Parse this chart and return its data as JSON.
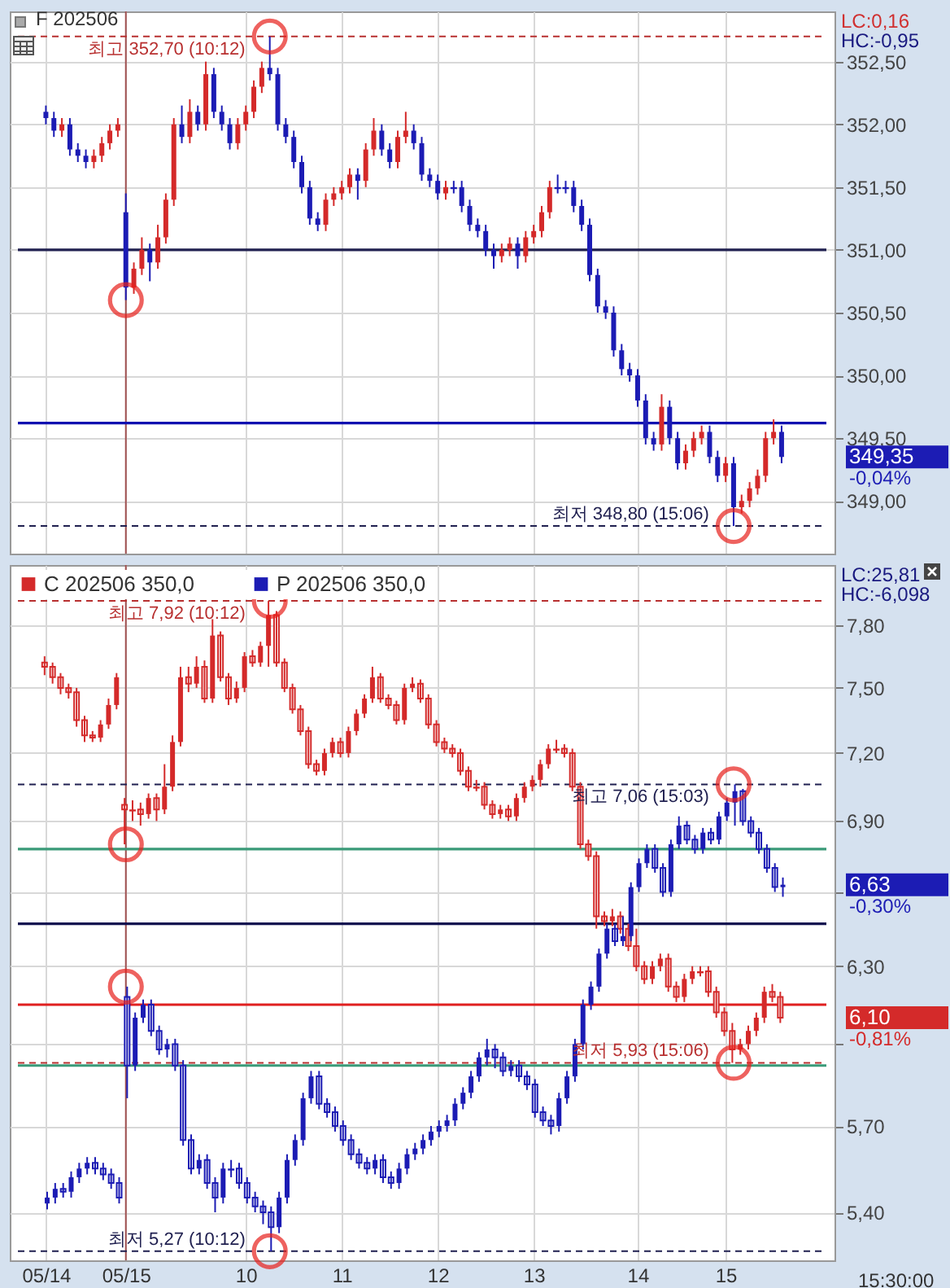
{
  "chart_data": [
    {
      "type": "candlestick",
      "title": "F 202506",
      "categories": [
        "05/14",
        null,
        null,
        null,
        null,
        null,
        null,
        null,
        null,
        null,
        "05/15",
        null,
        null,
        null,
        null,
        null,
        null,
        null,
        null,
        null,
        null,
        null,
        null,
        null,
        null,
        "10",
        null,
        null,
        null,
        null,
        null,
        null,
        null,
        null,
        null,
        null,
        null,
        "11",
        null,
        null,
        null,
        null,
        null,
        null,
        null,
        null,
        null,
        null,
        null,
        "12",
        null,
        null,
        null,
        null,
        null,
        null,
        null,
        null,
        null,
        null,
        null,
        "13",
        null,
        null,
        null,
        null,
        null,
        null,
        null,
        null,
        null,
        null,
        null,
        null,
        "14",
        null,
        null,
        null,
        null,
        null,
        null,
        null,
        null,
        null,
        null,
        "15",
        null,
        null,
        null,
        null,
        null,
        null,
        null
      ],
      "series": [
        {
          "colors": [
            "#1c1cb4",
            "#1c1cb4",
            "#d42a2a",
            "#1c1cb4",
            "#1c1cb4",
            "#1c1cb4",
            "#d42a2a",
            "#d42a2a",
            "#d42a2a",
            "#d42a2a",
            "#1c1cb4",
            "#d42a2a",
            "#d42a2a",
            "#1c1cb4",
            "#d42a2a",
            "#d42a2a",
            "#d42a2a",
            "#1c1cb4",
            "#d42a2a",
            "#1c1cb4",
            "#d42a2a",
            "#1c1cb4",
            "#1c1cb4",
            "#1c1cb4",
            "#d42a2a",
            "#d42a2a",
            "#d42a2a",
            "#d42a2a",
            "#1c1cb4",
            "#1c1cb4",
            "#1c1cb4",
            "#1c1cb4",
            "#1c1cb4",
            "#1c1cb4",
            "#1c1cb4",
            "#d42a2a",
            "#d42a2a",
            "#d42a2a",
            "#d42a2a",
            "#1c1cb4",
            "#d42a2a",
            "#d42a2a",
            "#1c1cb4",
            "#1c1cb4",
            "#d42a2a",
            "#d42a2a",
            "#1c1cb4",
            "#1c1cb4",
            "#1c1cb4",
            "#1c1cb4",
            "#d42a2a",
            "#1c1cb4",
            "#1c1cb4",
            "#1c1cb4",
            "#1c1cb4",
            "#1c1cb4",
            "#1c1cb4",
            "#d42a2a",
            "#d42a2a",
            "#1c1cb4",
            "#d42a2a",
            "#d42a2a",
            "#d42a2a",
            "#d42a2a",
            "#1c1cb4",
            "#1c1cb4",
            "#1c1cb4",
            "#1c1cb4",
            "#1c1cb4",
            "#1c1cb4",
            "#1c1cb4",
            "#1c1cb4",
            "#1c1cb4",
            "#1c1cb4",
            "#1c1cb4",
            "#1c1cb4",
            "#1c1cb4",
            "#d42a2a",
            "#1c1cb4",
            "#1c1cb4",
            "#d42a2a",
            "#d42a2a",
            "#d42a2a",
            "#1c1cb4",
            "#1c1cb4",
            "#d42a2a",
            "#1c1cb4",
            "#d42a2a",
            "#d42a2a",
            "#d42a2a",
            "#d42a2a",
            "#d42a2a",
            "#1c1cb4"
          ],
          "ohlc": [
            [
              352.1,
              352.15,
              352.0,
              352.05
            ],
            [
              352.05,
              352.1,
              351.9,
              351.95
            ],
            [
              351.95,
              352.05,
              351.9,
              352.0
            ],
            [
              352.0,
              352.05,
              351.75,
              351.8
            ],
            [
              351.8,
              351.85,
              351.7,
              351.75
            ],
            [
              351.75,
              351.8,
              351.65,
              351.7
            ],
            [
              351.7,
              351.8,
              351.65,
              351.75
            ],
            [
              351.75,
              351.9,
              351.7,
              351.85
            ],
            [
              351.85,
              352.0,
              351.8,
              351.95
            ],
            [
              351.95,
              352.05,
              351.9,
              352.0
            ],
            [
              351.3,
              351.45,
              350.6,
              350.7
            ],
            [
              350.7,
              350.9,
              350.65,
              350.85
            ],
            [
              350.85,
              351.1,
              350.8,
              351.0
            ],
            [
              351.0,
              351.05,
              350.75,
              350.9
            ],
            [
              350.9,
              351.2,
              350.85,
              351.1
            ],
            [
              351.1,
              351.45,
              351.05,
              351.4
            ],
            [
              351.4,
              352.05,
              351.35,
              352.0
            ],
            [
              352.0,
              352.15,
              351.85,
              351.9
            ],
            [
              351.9,
              352.2,
              351.85,
              352.1
            ],
            [
              352.1,
              352.15,
              351.95,
              352.0
            ],
            [
              352.0,
              352.5,
              351.95,
              352.4
            ],
            [
              352.4,
              352.45,
              352.05,
              352.1
            ],
            [
              352.1,
              352.15,
              351.95,
              352.0
            ],
            [
              352.0,
              352.05,
              351.8,
              351.85
            ],
            [
              351.85,
              352.05,
              351.8,
              352.0
            ],
            [
              352.0,
              352.15,
              351.95,
              352.1
            ],
            [
              352.1,
              352.35,
              352.05,
              352.3
            ],
            [
              352.3,
              352.5,
              352.25,
              352.45
            ],
            [
              352.45,
              352.7,
              352.35,
              352.4
            ],
            [
              352.4,
              352.45,
              351.95,
              352.0
            ],
            [
              352.0,
              352.05,
              351.85,
              351.9
            ],
            [
              351.9,
              351.95,
              351.65,
              351.7
            ],
            [
              351.7,
              351.75,
              351.45,
              351.5
            ],
            [
              351.5,
              351.55,
              351.2,
              351.25
            ],
            [
              351.25,
              351.3,
              351.15,
              351.2
            ],
            [
              351.2,
              351.45,
              351.15,
              351.4
            ],
            [
              351.4,
              351.5,
              351.35,
              351.45
            ],
            [
              351.45,
              351.55,
              351.4,
              351.5
            ],
            [
              351.5,
              351.65,
              351.45,
              351.6
            ],
            [
              351.6,
              351.65,
              351.4,
              351.55
            ],
            [
              351.55,
              351.85,
              351.5,
              351.8
            ],
            [
              351.8,
              352.05,
              351.75,
              351.95
            ],
            [
              351.95,
              352.0,
              351.75,
              351.8
            ],
            [
              351.8,
              351.85,
              351.65,
              351.7
            ],
            [
              351.7,
              351.95,
              351.65,
              351.9
            ],
            [
              351.9,
              352.1,
              351.85,
              351.95
            ],
            [
              351.95,
              352.0,
              351.8,
              351.85
            ],
            [
              351.85,
              351.9,
              351.55,
              351.6
            ],
            [
              351.6,
              351.65,
              351.5,
              351.55
            ],
            [
              351.55,
              351.6,
              351.4,
              351.45
            ],
            [
              351.45,
              351.55,
              351.4,
              351.5
            ],
            [
              351.5,
              351.55,
              351.45,
              351.5
            ],
            [
              351.5,
              351.55,
              351.3,
              351.35
            ],
            [
              351.35,
              351.4,
              351.15,
              351.2
            ],
            [
              351.2,
              351.25,
              351.1,
              351.15
            ],
            [
              351.15,
              351.2,
              350.95,
              351.0
            ],
            [
              351.0,
              351.05,
              350.85,
              350.95
            ],
            [
              350.95,
              351.05,
              350.9,
              351.0
            ],
            [
              351.0,
              351.1,
              350.95,
              351.05
            ],
            [
              351.05,
              351.1,
              350.85,
              350.95
            ],
            [
              350.95,
              351.15,
              350.9,
              351.1
            ],
            [
              351.1,
              351.2,
              351.05,
              351.15
            ],
            [
              351.15,
              351.35,
              351.1,
              351.3
            ],
            [
              351.3,
              351.55,
              351.25,
              351.5
            ],
            [
              351.5,
              351.6,
              351.45,
              351.5
            ],
            [
              351.5,
              351.55,
              351.45,
              351.5
            ],
            [
              351.5,
              351.55,
              351.3,
              351.35
            ],
            [
              351.35,
              351.4,
              351.15,
              351.2
            ],
            [
              351.2,
              351.25,
              350.75,
              350.8
            ],
            [
              350.8,
              350.85,
              350.5,
              350.55
            ],
            [
              350.55,
              350.6,
              350.45,
              350.5
            ],
            [
              350.5,
              350.55,
              350.15,
              350.2
            ],
            [
              350.2,
              350.25,
              350.0,
              350.05
            ],
            [
              350.05,
              350.1,
              349.95,
              350.0
            ],
            [
              350.0,
              350.05,
              349.75,
              349.8
            ],
            [
              349.8,
              349.85,
              349.45,
              349.5
            ],
            [
              349.5,
              349.55,
              349.4,
              349.45
            ],
            [
              349.45,
              349.85,
              349.4,
              349.75
            ],
            [
              349.75,
              349.8,
              349.45,
              349.5
            ],
            [
              349.5,
              349.55,
              349.25,
              349.3
            ],
            [
              349.3,
              349.45,
              349.25,
              349.4
            ],
            [
              349.4,
              349.55,
              349.35,
              349.5
            ],
            [
              349.5,
              349.6,
              349.45,
              349.55
            ],
            [
              349.55,
              349.6,
              349.3,
              349.35
            ],
            [
              349.35,
              349.4,
              349.15,
              349.2
            ],
            [
              349.2,
              349.35,
              349.15,
              349.3
            ],
            [
              349.3,
              349.35,
              348.8,
              348.95
            ],
            [
              348.95,
              349.05,
              348.9,
              349.0
            ],
            [
              349.0,
              349.15,
              348.95,
              349.1
            ],
            [
              349.1,
              349.25,
              349.05,
              349.2
            ],
            [
              349.2,
              349.55,
              349.15,
              349.5
            ],
            [
              349.5,
              349.65,
              349.45,
              349.55
            ],
            [
              349.55,
              349.6,
              349.3,
              349.35
            ]
          ]
        }
      ],
      "ylim": [
        348.58,
        352.9
      ],
      "yticks": [
        {
          "value": 349,
          "label": "349,00"
        },
        {
          "value": 349.5,
          "label": "349,50"
        },
        {
          "value": 350,
          "label": "350,00"
        },
        {
          "value": 350.5,
          "label": "350,50"
        },
        {
          "value": 351,
          "label": "351,00"
        },
        {
          "value": 351.5,
          "label": "351,50"
        },
        {
          "value": 352,
          "label": "352,00"
        },
        {
          "value": 352.5,
          "label": "352,50"
        }
      ],
      "grid": true,
      "tick_labels": "y",
      "ref_lines": [
        {
          "axis": "x",
          "value": "05/15",
          "color": "#a05050"
        },
        {
          "axis": "y",
          "value": 352.7,
          "label": "최고 352,70 (10:12)",
          "color": "#b83030",
          "line_style": "dashed"
        },
        {
          "axis": "y",
          "value": 351.0,
          "color": "#202050"
        },
        {
          "axis": "y",
          "value": 349.62,
          "color": "#1010b0"
        },
        {
          "axis": "y",
          "value": 348.8,
          "label": "최저 348,80 (15:06)",
          "color": "#202050",
          "line_style": "dashed"
        }
      ],
      "annotations": [
        "LC:0,16",
        "HC:-0,95",
        "349,35",
        "-0,04%"
      ]
    },
    {
      "type": "candlestick",
      "categories": [
        "05/14",
        null,
        null,
        null,
        null,
        null,
        null,
        null,
        null,
        null,
        "05/15",
        null,
        null,
        null,
        null,
        null,
        null,
        null,
        null,
        null,
        null,
        null,
        null,
        null,
        null,
        "10",
        null,
        null,
        null,
        null,
        null,
        null,
        null,
        null,
        null,
        null,
        null,
        "11",
        null,
        null,
        null,
        null,
        null,
        null,
        null,
        null,
        null,
        null,
        null,
        "12",
        null,
        null,
        null,
        null,
        null,
        null,
        null,
        null,
        null,
        null,
        null,
        "13",
        null,
        null,
        null,
        null,
        null,
        null,
        null,
        null,
        null,
        null,
        null,
        null,
        "14",
        null,
        null,
        null,
        null,
        null,
        null,
        null,
        null,
        null,
        null,
        "15",
        null,
        null,
        null,
        null,
        null,
        null,
        null
      ],
      "series": [
        {
          "name": "C 202506 350,0",
          "color": "#d42a2a",
          "ohlc": [
            [
              7.62,
              7.65,
              7.56,
              7.6
            ],
            [
              7.6,
              7.62,
              7.52,
              7.55
            ],
            [
              7.55,
              7.57,
              7.47,
              7.5
            ],
            [
              7.5,
              7.52,
              7.45,
              7.48
            ],
            [
              7.48,
              7.5,
              7.32,
              7.35
            ],
            [
              7.35,
              7.37,
              7.25,
              7.28
            ],
            [
              7.28,
              7.3,
              7.25,
              7.27
            ],
            [
              7.27,
              7.35,
              7.25,
              7.33
            ],
            [
              7.33,
              7.45,
              7.31,
              7.42
            ],
            [
              7.42,
              7.57,
              7.4,
              7.55
            ],
            [
              6.97,
              7.0,
              6.8,
              6.95
            ],
            [
              6.95,
              6.99,
              6.9,
              6.95
            ],
            [
              6.95,
              6.98,
              6.88,
              6.93
            ],
            [
              6.93,
              7.02,
              6.91,
              7.0
            ],
            [
              7.0,
              7.02,
              6.9,
              6.95
            ],
            [
              6.95,
              7.15,
              6.93,
              7.05
            ],
            [
              7.05,
              7.28,
              7.03,
              7.25
            ],
            [
              7.25,
              7.6,
              7.23,
              7.55
            ],
            [
              7.55,
              7.6,
              7.48,
              7.52
            ],
            [
              7.52,
              7.65,
              7.5,
              7.6
            ],
            [
              7.6,
              7.63,
              7.43,
              7.45
            ],
            [
              7.45,
              7.83,
              7.43,
              7.75
            ],
            [
              7.75,
              7.77,
              7.53,
              7.55
            ],
            [
              7.55,
              7.57,
              7.42,
              7.45
            ],
            [
              7.45,
              7.53,
              7.43,
              7.5
            ],
            [
              7.5,
              7.67,
              7.48,
              7.65
            ],
            [
              7.65,
              7.68,
              7.6,
              7.62
            ],
            [
              7.62,
              7.72,
              7.6,
              7.7
            ],
            [
              7.7,
              7.92,
              7.6,
              7.85
            ],
            [
              7.85,
              7.87,
              7.6,
              7.62
            ],
            [
              7.62,
              7.64,
              7.48,
              7.5
            ],
            [
              7.5,
              7.52,
              7.38,
              7.4
            ],
            [
              7.4,
              7.42,
              7.28,
              7.3
            ],
            [
              7.3,
              7.32,
              7.13,
              7.15
            ],
            [
              7.15,
              7.17,
              7.1,
              7.12
            ],
            [
              7.12,
              7.22,
              7.1,
              7.2
            ],
            [
              7.2,
              7.27,
              7.18,
              7.25
            ],
            [
              7.25,
              7.27,
              7.18,
              7.2
            ],
            [
              7.2,
              7.32,
              7.18,
              7.3
            ],
            [
              7.3,
              7.4,
              7.28,
              7.38
            ],
            [
              7.38,
              7.47,
              7.36,
              7.45
            ],
            [
              7.45,
              7.6,
              7.43,
              7.55
            ],
            [
              7.55,
              7.57,
              7.43,
              7.45
            ],
            [
              7.45,
              7.47,
              7.4,
              7.42
            ],
            [
              7.42,
              7.44,
              7.33,
              7.35
            ],
            [
              7.35,
              7.52,
              7.33,
              7.5
            ],
            [
              7.5,
              7.55,
              7.48,
              7.52
            ],
            [
              7.52,
              7.54,
              7.43,
              7.45
            ],
            [
              7.45,
              7.47,
              7.31,
              7.33
            ],
            [
              7.33,
              7.35,
              7.23,
              7.25
            ],
            [
              7.25,
              7.27,
              7.2,
              7.22
            ],
            [
              7.22,
              7.24,
              7.18,
              7.2
            ],
            [
              7.2,
              7.22,
              7.1,
              7.12
            ],
            [
              7.12,
              7.14,
              7.03,
              7.05
            ],
            [
              7.05,
              7.08,
              7.03,
              7.05
            ],
            [
              7.05,
              7.07,
              6.95,
              6.97
            ],
            [
              6.97,
              6.99,
              6.91,
              6.93
            ],
            [
              6.93,
              6.97,
              6.91,
              6.95
            ],
            [
              6.95,
              6.97,
              6.9,
              6.92
            ],
            [
              6.92,
              7.02,
              6.9,
              7.0
            ],
            [
              7.0,
              7.07,
              6.98,
              7.05
            ],
            [
              7.05,
              7.1,
              7.03,
              7.08
            ],
            [
              7.08,
              7.17,
              7.05,
              7.15
            ],
            [
              7.15,
              7.24,
              7.13,
              7.22
            ],
            [
              7.22,
              7.26,
              7.2,
              7.22
            ],
            [
              7.22,
              7.24,
              7.18,
              7.2
            ],
            [
              7.2,
              7.22,
              7.03,
              7.05
            ],
            [
              7.05,
              7.07,
              6.78,
              6.8
            ],
            [
              6.8,
              6.82,
              6.73,
              6.75
            ],
            [
              6.75,
              6.77,
              6.45,
              6.5
            ],
            [
              6.5,
              6.52,
              6.46,
              6.48
            ],
            [
              6.48,
              6.53,
              6.46,
              6.5
            ],
            [
              6.5,
              6.52,
              6.43,
              6.45
            ],
            [
              6.45,
              6.47,
              6.36,
              6.38
            ],
            [
              6.38,
              6.45,
              6.28,
              6.3
            ],
            [
              6.3,
              6.32,
              6.23,
              6.25
            ],
            [
              6.25,
              6.32,
              6.23,
              6.3
            ],
            [
              6.3,
              6.35,
              6.28,
              6.33
            ],
            [
              6.33,
              6.35,
              6.2,
              6.22
            ],
            [
              6.22,
              6.24,
              6.16,
              6.18
            ],
            [
              6.18,
              6.27,
              6.16,
              6.25
            ],
            [
              6.25,
              6.3,
              6.23,
              6.28
            ],
            [
              6.28,
              6.3,
              6.26,
              6.28
            ],
            [
              6.28,
              6.3,
              6.18,
              6.2
            ],
            [
              6.2,
              6.22,
              6.1,
              6.12
            ],
            [
              6.12,
              6.14,
              6.03,
              6.05
            ],
            [
              6.05,
              6.08,
              5.93,
              5.98
            ],
            [
              5.98,
              6.02,
              5.96,
              6.0
            ],
            [
              6.0,
              6.07,
              5.98,
              6.05
            ],
            [
              6.05,
              6.12,
              6.03,
              6.1
            ],
            [
              6.1,
              6.22,
              6.08,
              6.2
            ],
            [
              6.2,
              6.23,
              6.16,
              6.18
            ],
            [
              6.18,
              6.2,
              6.08,
              6.1
            ]
          ]
        },
        {
          "name": "P 202506 350,0",
          "color": "#1c1cb4",
          "ohlc": [
            [
              5.43,
              5.47,
              5.41,
              5.45
            ],
            [
              5.45,
              5.5,
              5.43,
              5.48
            ],
            [
              5.48,
              5.5,
              5.45,
              5.47
            ],
            [
              5.47,
              5.54,
              5.45,
              5.52
            ],
            [
              5.52,
              5.57,
              5.5,
              5.55
            ],
            [
              5.55,
              5.59,
              5.53,
              5.57
            ],
            [
              5.57,
              5.59,
              5.53,
              5.55
            ],
            [
              5.55,
              5.57,
              5.51,
              5.53
            ],
            [
              5.53,
              5.55,
              5.48,
              5.5
            ],
            [
              5.5,
              5.52,
              5.43,
              5.45
            ],
            [
              6.18,
              6.22,
              5.8,
              5.92
            ],
            [
              5.92,
              6.12,
              5.9,
              6.1
            ],
            [
              6.1,
              6.17,
              6.08,
              6.15
            ],
            [
              6.15,
              6.17,
              6.03,
              6.05
            ],
            [
              6.05,
              6.07,
              5.96,
              5.98
            ],
            [
              5.98,
              6.02,
              5.95,
              6.0
            ],
            [
              6.0,
              6.02,
              5.9,
              5.92
            ],
            [
              5.92,
              5.94,
              5.63,
              5.65
            ],
            [
              5.65,
              5.67,
              5.53,
              5.55
            ],
            [
              5.55,
              5.6,
              5.53,
              5.58
            ],
            [
              5.58,
              5.6,
              5.48,
              5.5
            ],
            [
              5.5,
              5.52,
              5.4,
              5.45
            ],
            [
              5.45,
              5.57,
              5.43,
              5.55
            ],
            [
              5.55,
              5.58,
              5.52,
              5.55
            ],
            [
              5.55,
              5.57,
              5.48,
              5.5
            ],
            [
              5.5,
              5.52,
              5.43,
              5.45
            ],
            [
              5.45,
              5.47,
              5.4,
              5.42
            ],
            [
              5.42,
              5.44,
              5.36,
              5.4
            ],
            [
              5.4,
              5.42,
              5.27,
              5.35
            ],
            [
              5.35,
              5.47,
              5.33,
              5.45
            ],
            [
              5.45,
              5.6,
              5.43,
              5.58
            ],
            [
              5.58,
              5.67,
              5.56,
              5.65
            ],
            [
              5.65,
              5.82,
              5.63,
              5.8
            ],
            [
              5.8,
              5.9,
              5.78,
              5.88
            ],
            [
              5.88,
              5.9,
              5.76,
              5.78
            ],
            [
              5.78,
              5.8,
              5.73,
              5.75
            ],
            [
              5.75,
              5.77,
              5.68,
              5.7
            ],
            [
              5.7,
              5.72,
              5.63,
              5.65
            ],
            [
              5.65,
              5.67,
              5.58,
              5.6
            ],
            [
              5.6,
              5.62,
              5.55,
              5.57
            ],
            [
              5.57,
              5.59,
              5.53,
              5.55
            ],
            [
              5.55,
              5.6,
              5.53,
              5.58
            ],
            [
              5.58,
              5.6,
              5.5,
              5.52
            ],
            [
              5.52,
              5.54,
              5.48,
              5.5
            ],
            [
              5.5,
              5.57,
              5.48,
              5.55
            ],
            [
              5.55,
              5.62,
              5.53,
              5.6
            ],
            [
              5.6,
              5.64,
              5.58,
              5.62
            ],
            [
              5.62,
              5.67,
              5.6,
              5.65
            ],
            [
              5.65,
              5.7,
              5.63,
              5.68
            ],
            [
              5.68,
              5.72,
              5.66,
              5.7
            ],
            [
              5.7,
              5.74,
              5.68,
              5.72
            ],
            [
              5.72,
              5.8,
              5.7,
              5.78
            ],
            [
              5.78,
              5.84,
              5.76,
              5.82
            ],
            [
              5.82,
              5.9,
              5.8,
              5.88
            ],
            [
              5.88,
              5.97,
              5.86,
              5.95
            ],
            [
              5.95,
              6.02,
              5.92,
              5.98
            ],
            [
              5.98,
              6.0,
              5.91,
              5.95
            ],
            [
              5.95,
              5.97,
              5.88,
              5.9
            ],
            [
              5.9,
              5.94,
              5.88,
              5.92
            ],
            [
              5.92,
              5.94,
              5.86,
              5.88
            ],
            [
              5.88,
              5.9,
              5.83,
              5.85
            ],
            [
              5.85,
              5.87,
              5.73,
              5.75
            ],
            [
              5.75,
              5.77,
              5.7,
              5.72
            ],
            [
              5.72,
              5.74,
              5.67,
              5.7
            ],
            [
              5.7,
              5.82,
              5.68,
              5.8
            ],
            [
              5.8,
              5.9,
              5.78,
              5.88
            ],
            [
              5.88,
              6.02,
              5.86,
              6.0
            ],
            [
              6.0,
              6.17,
              5.98,
              6.15
            ],
            [
              6.15,
              6.24,
              6.13,
              6.22
            ],
            [
              6.22,
              6.37,
              6.2,
              6.35
            ],
            [
              6.35,
              6.47,
              6.33,
              6.45
            ],
            [
              6.45,
              6.47,
              6.38,
              6.4
            ],
            [
              6.4,
              6.5,
              6.38,
              6.42
            ],
            [
              6.42,
              6.64,
              6.4,
              6.62
            ],
            [
              6.62,
              6.74,
              6.6,
              6.72
            ],
            [
              6.72,
              6.8,
              6.7,
              6.78
            ],
            [
              6.78,
              6.8,
              6.68,
              6.7
            ],
            [
              6.7,
              6.72,
              6.58,
              6.6
            ],
            [
              6.6,
              6.82,
              6.58,
              6.8
            ],
            [
              6.8,
              6.92,
              6.78,
              6.88
            ],
            [
              6.88,
              6.9,
              6.8,
              6.82
            ],
            [
              6.82,
              6.84,
              6.76,
              6.78
            ],
            [
              6.78,
              6.87,
              6.76,
              6.85
            ],
            [
              6.85,
              6.87,
              6.8,
              6.82
            ],
            [
              6.82,
              6.94,
              6.8,
              6.92
            ],
            [
              6.92,
              7.0,
              6.9,
              6.98
            ],
            [
              6.98,
              7.06,
              6.88,
              7.03
            ],
            [
              7.03,
              7.04,
              6.88,
              6.9
            ],
            [
              6.9,
              6.92,
              6.83,
              6.85
            ],
            [
              6.85,
              6.87,
              6.76,
              6.78
            ],
            [
              6.78,
              6.8,
              6.68,
              6.7
            ],
            [
              6.7,
              6.72,
              6.6,
              6.62
            ],
            [
              6.62,
              6.66,
              6.58,
              6.63
            ]
          ]
        }
      ],
      "ylim": [
        5.24,
        8.1
      ],
      "log": true,
      "yticks": [
        {
          "value": 5.4,
          "label": "5,40"
        },
        {
          "value": 5.7,
          "label": "5,70"
        },
        {
          "value": 6.0,
          "label": null
        },
        {
          "value": 6.3,
          "label": "6,30"
        },
        {
          "value": 6.6,
          "label": null
        },
        {
          "value": 6.9,
          "label": "6,90"
        },
        {
          "value": 7.2,
          "label": "7,20"
        },
        {
          "value": 7.5,
          "label": "7,50"
        },
        {
          "value": 7.8,
          "label": "7,80"
        }
      ],
      "grid": true,
      "legend": "top left",
      "xlabel": "15:30:00",
      "ref_lines": [
        {
          "axis": "x",
          "value": "05/15",
          "color": "#a05050"
        },
        {
          "axis": "y",
          "value": 7.92,
          "label": "최고 7,92 (10:12)",
          "color": "#b83030",
          "line_style": "dashed"
        },
        {
          "axis": "y",
          "value": 7.06,
          "label": "최고 7,06 (15:03)",
          "color": "#202050",
          "line_style": "dashed"
        },
        {
          "axis": "y",
          "value": 6.78,
          "color": "#3a9a78"
        },
        {
          "axis": "y",
          "value": 6.47,
          "color": "#101050"
        },
        {
          "axis": "y",
          "value": 6.15,
          "color": "#e02020"
        },
        {
          "axis": "y",
          "value": 5.93,
          "label": "최저 5,93 (15:06)",
          "color": "#b83030",
          "line_style": "dashed"
        },
        {
          "axis": "y",
          "value": 5.92,
          "color": "#3a9a78"
        },
        {
          "axis": "y",
          "value": 5.27,
          "label": "최저 5,27 (10:12)",
          "color": "#202050",
          "line_style": "dashed"
        }
      ],
      "annotations": [
        "LC:25,81",
        "HC:-6,098",
        "6,10",
        "-0,81%",
        "6,63",
        "-0,30%"
      ]
    }
  ]
}
